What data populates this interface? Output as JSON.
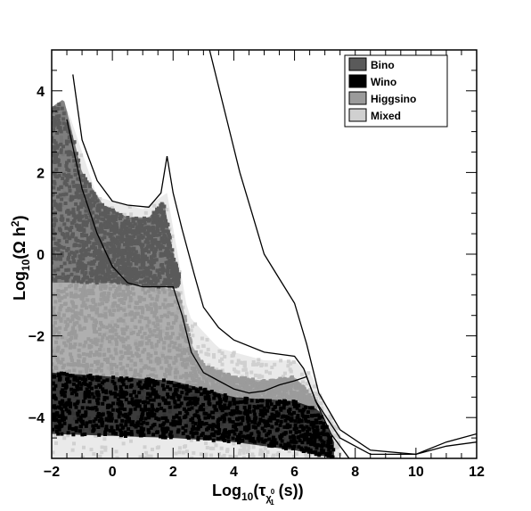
{
  "chart_data": {
    "type": "scatter",
    "title": "",
    "xlabel": {
      "prefix": "Log",
      "prefix_sub": "10",
      "open": "(",
      "tau": "τ",
      "tau_sub": "χ",
      "tau_sub_sup": "0",
      "tau_sub_sub": "1",
      "unit": " (s))"
    },
    "ylabel": {
      "prefix": "Log",
      "prefix_sub": "10",
      "body": "(Ω h",
      "body_sup": "2",
      "close": ")"
    },
    "xlim": [
      -2,
      12
    ],
    "ylim": [
      -5,
      5
    ],
    "x_ticks": [
      -2,
      0,
      2,
      4,
      6,
      8,
      10,
      12
    ],
    "y_ticks": [
      -4,
      -2,
      0,
      2,
      4
    ],
    "grid": false,
    "legend_position": "top-right",
    "colors": {
      "bino": "#5a5a5a",
      "wino": "#000000",
      "higgsino": "#9b9b9b",
      "mixed": "#d0d0d0"
    },
    "series": [
      {
        "name": "Bino",
        "color": "#5a5a5a",
        "region_bounds": {
          "x_range": [
            -2.0,
            2.2
          ],
          "upper_y": [
            [
              -2.0,
              3.6
            ],
            [
              -1.6,
              3.8
            ],
            [
              -1.0,
              2.0
            ],
            [
              -0.3,
              1.2
            ],
            [
              0.5,
              0.9
            ],
            [
              1.2,
              0.9
            ],
            [
              1.7,
              1.3
            ],
            [
              2.0,
              0.0
            ],
            [
              2.2,
              -0.5
            ]
          ],
          "lower_y": [
            [
              -2.0,
              -0.7
            ],
            [
              0.0,
              -0.7
            ],
            [
              1.5,
              -0.8
            ],
            [
              2.2,
              -0.8
            ]
          ]
        }
      },
      {
        "name": "Wino",
        "color": "#000000",
        "region_bounds": {
          "x_range": [
            -2.0,
            7.3
          ],
          "upper_y": [
            [
              -2.0,
              -2.9
            ],
            [
              0.0,
              -3.0
            ],
            [
              2.0,
              -3.1
            ],
            [
              4.0,
              -3.5
            ],
            [
              6.0,
              -3.6
            ],
            [
              6.8,
              -3.8
            ],
            [
              7.3,
              -4.6
            ]
          ],
          "lower_y": [
            [
              -2.0,
              -4.4
            ],
            [
              2.0,
              -4.5
            ],
            [
              4.0,
              -4.6
            ],
            [
              6.0,
              -4.8
            ],
            [
              7.3,
              -5.0
            ]
          ]
        }
      },
      {
        "name": "Higgsino",
        "color": "#9b9b9b",
        "region_bounds": {
          "x_range": [
            -2.0,
            6.7
          ],
          "upper_y": [
            [
              -2.0,
              -0.7
            ],
            [
              0.0,
              -0.7
            ],
            [
              1.5,
              -0.8
            ],
            [
              2.2,
              -0.9
            ],
            [
              2.6,
              -2.2
            ],
            [
              3.0,
              -2.7
            ],
            [
              4.0,
              -3.0
            ],
            [
              5.0,
              -3.1
            ],
            [
              6.0,
              -3.0
            ],
            [
              6.7,
              -3.6
            ]
          ],
          "lower_y": [
            [
              -2.0,
              -3.0
            ],
            [
              0.0,
              -3.0
            ],
            [
              2.0,
              -3.1
            ],
            [
              4.0,
              -3.5
            ],
            [
              6.0,
              -3.6
            ],
            [
              6.7,
              -3.8
            ]
          ]
        }
      },
      {
        "name": "Mixed",
        "color": "#d0d0d0",
        "region_bounds": {
          "x_range": [
            -2.0,
            7.5
          ],
          "upper_y": [
            [
              -2.0,
              3.3
            ],
            [
              -1.5,
              3.6
            ],
            [
              -0.5,
              1.4
            ],
            [
              1.0,
              1.1
            ],
            [
              1.8,
              1.5
            ],
            [
              2.5,
              -1.5
            ],
            [
              3.5,
              -2.3
            ],
            [
              5.0,
              -2.6
            ],
            [
              6.0,
              -2.6
            ],
            [
              6.6,
              -3.0
            ],
            [
              7.5,
              -4.4
            ]
          ],
          "lower_y": [
            [
              -2.0,
              -5.0
            ],
            [
              7.5,
              -5.0
            ]
          ]
        }
      }
    ],
    "contours": [
      {
        "id": "upper-boundary",
        "points": [
          [
            -1.3,
            4.4
          ],
          [
            -1.0,
            2.8
          ],
          [
            -0.5,
            1.8
          ],
          [
            0.0,
            1.3
          ],
          [
            0.5,
            1.2
          ],
          [
            1.2,
            1.15
          ],
          [
            1.6,
            1.5
          ],
          [
            1.8,
            2.4
          ],
          [
            2.0,
            1.5
          ],
          [
            2.3,
            0.6
          ],
          [
            2.7,
            -0.5
          ],
          [
            3.0,
            -1.3
          ],
          [
            3.5,
            -1.8
          ],
          [
            4.0,
            -2.1
          ],
          [
            5.0,
            -2.4
          ],
          [
            6.0,
            -2.5
          ],
          [
            6.3,
            -2.8
          ],
          [
            6.7,
            -3.6
          ],
          [
            7.5,
            -4.5
          ],
          [
            8.5,
            -4.9
          ],
          [
            10.0,
            -4.9
          ],
          [
            11.0,
            -4.6
          ],
          [
            12.0,
            -4.4
          ]
        ]
      },
      {
        "id": "lower-boundary",
        "points": [
          [
            -1.5,
            3.3
          ],
          [
            -1.0,
            1.6
          ],
          [
            -0.5,
            0.5
          ],
          [
            0.0,
            -0.3
          ],
          [
            0.5,
            -0.7
          ],
          [
            1.0,
            -0.8
          ],
          [
            2.0,
            -0.8
          ],
          [
            2.3,
            -1.5
          ],
          [
            2.6,
            -2.4
          ],
          [
            3.0,
            -2.9
          ],
          [
            3.5,
            -3.1
          ],
          [
            4.0,
            -3.3
          ],
          [
            4.5,
            -3.4
          ],
          [
            5.0,
            -3.35
          ],
          [
            5.5,
            -3.2
          ],
          [
            6.0,
            -3.1
          ],
          [
            6.4,
            -3.0
          ],
          [
            6.7,
            -3.6
          ],
          [
            7.2,
            -4.4
          ],
          [
            7.8,
            -5.0
          ]
        ]
      },
      {
        "id": "far-boundary",
        "points": [
          [
            3.2,
            5.0
          ],
          [
            3.8,
            3.2
          ],
          [
            4.2,
            2.0
          ],
          [
            4.6,
            1.0
          ],
          [
            5.0,
            0.0
          ],
          [
            5.5,
            -0.6
          ],
          [
            6.0,
            -1.2
          ],
          [
            6.4,
            -2.2
          ],
          [
            6.8,
            -3.4
          ],
          [
            7.5,
            -4.3
          ],
          [
            8.5,
            -4.8
          ],
          [
            10.0,
            -4.9
          ],
          [
            11.0,
            -4.7
          ],
          [
            12.0,
            -4.6
          ]
        ]
      }
    ],
    "legend": [
      {
        "label": "Bino",
        "color": "#5a5a5a"
      },
      {
        "label": "Wino",
        "color": "#000000"
      },
      {
        "label": "Higgsino",
        "color": "#9b9b9b"
      },
      {
        "label": "Mixed",
        "color": "#d0d0d0"
      }
    ]
  }
}
